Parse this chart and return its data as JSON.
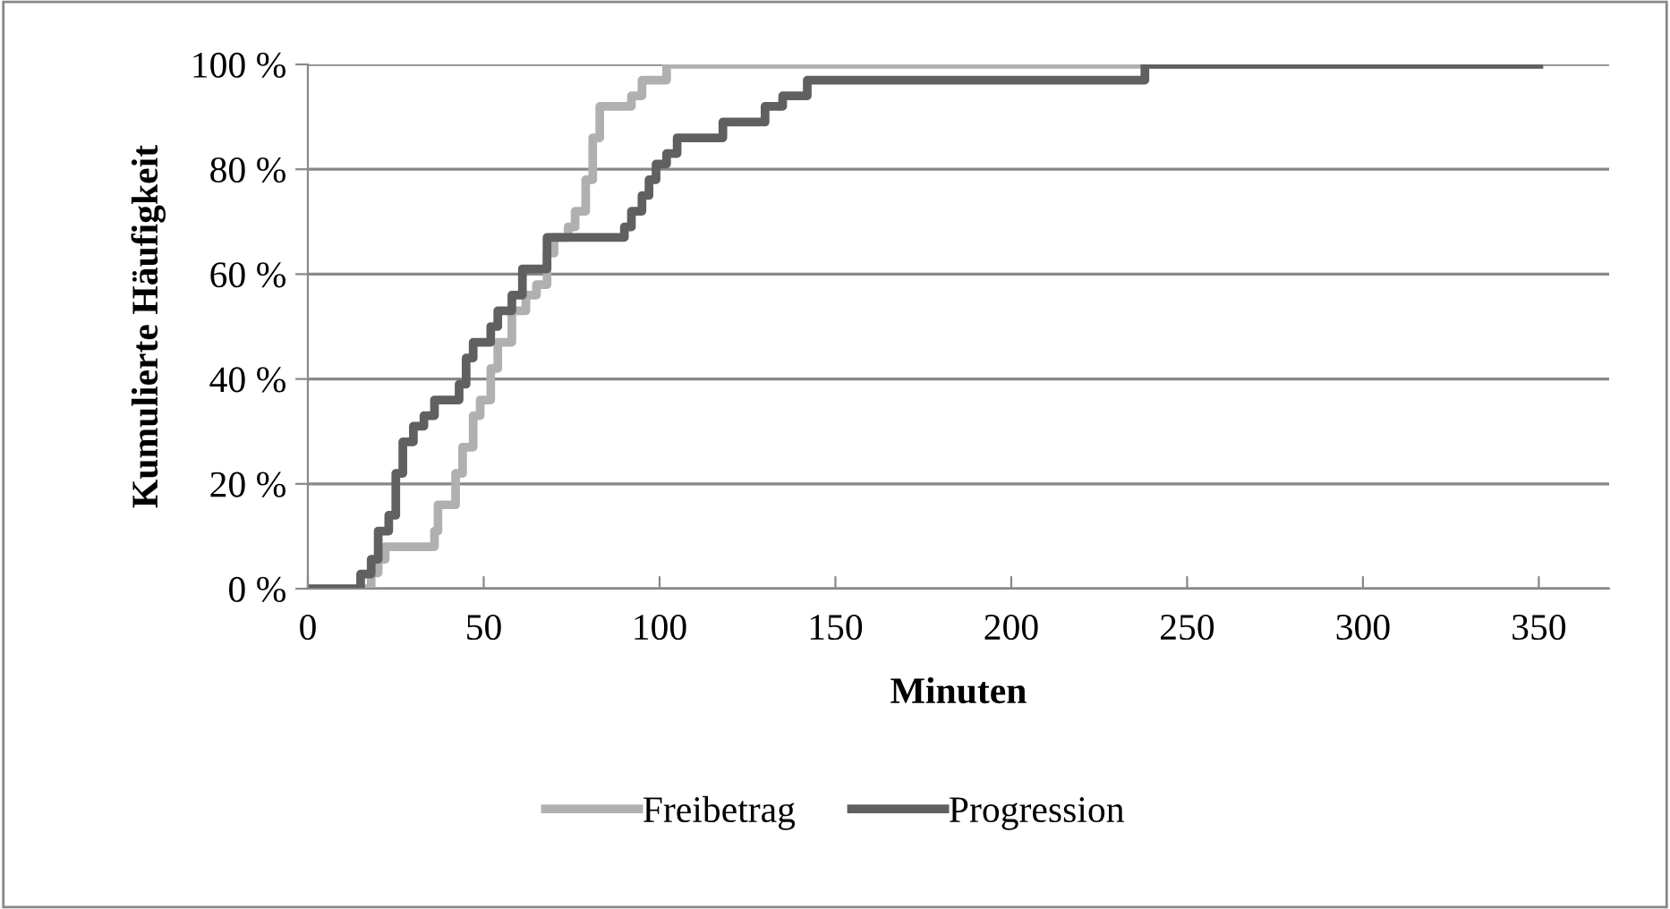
{
  "chart_data": {
    "type": "step",
    "xlabel": "Minuten",
    "ylabel": "Kumulierte Häufigkeit",
    "series": [
      {
        "name": "Freibetrag",
        "color": "#b0b0b0",
        "x": [
          0,
          17,
          18,
          20,
          22,
          36,
          37,
          42,
          44,
          47,
          49,
          52,
          54,
          58,
          62,
          65,
          68,
          70,
          74,
          76,
          79,
          81,
          83,
          92,
          95,
          102,
          238,
          350
        ],
        "values": [
          0,
          0,
          3,
          5.6,
          8,
          11,
          16,
          22,
          27,
          33,
          36,
          42,
          47,
          53,
          56,
          58,
          64,
          67,
          69,
          72,
          78,
          86,
          92,
          94,
          97,
          100,
          100,
          100
        ]
      },
      {
        "name": "Progression",
        "color": "#606060",
        "x": [
          0,
          15,
          18,
          20,
          23,
          25,
          27,
          30,
          33,
          36,
          43,
          45,
          47,
          52,
          54,
          58,
          61,
          68,
          90,
          92,
          95,
          97,
          99,
          102,
          105,
          118,
          130,
          135,
          142,
          238,
          350
        ],
        "values": [
          0,
          2.8,
          5.6,
          11,
          14,
          22,
          28,
          31,
          33,
          36,
          39,
          44,
          47,
          50,
          53,
          56,
          61,
          67,
          69,
          72,
          75,
          78,
          81,
          83,
          86,
          89,
          92,
          94,
          97,
          100,
          100
        ]
      }
    ],
    "xlim": [
      0,
      370
    ],
    "xticks": [
      0,
      50,
      100,
      150,
      200,
      250,
      300,
      350
    ],
    "ylim": [
      0,
      100
    ],
    "yticks": [
      {
        "value": 0,
        "label": "0 %"
      },
      {
        "value": 20,
        "label": "20 %"
      },
      {
        "value": 40,
        "label": "40 %"
      },
      {
        "value": 60,
        "label": "60 %"
      },
      {
        "value": 80,
        "label": "80 %"
      },
      {
        "value": 100,
        "label": "100 %"
      }
    ],
    "grid": "y",
    "legend": "bottom",
    "marker": "none",
    "line_style": "solid"
  }
}
